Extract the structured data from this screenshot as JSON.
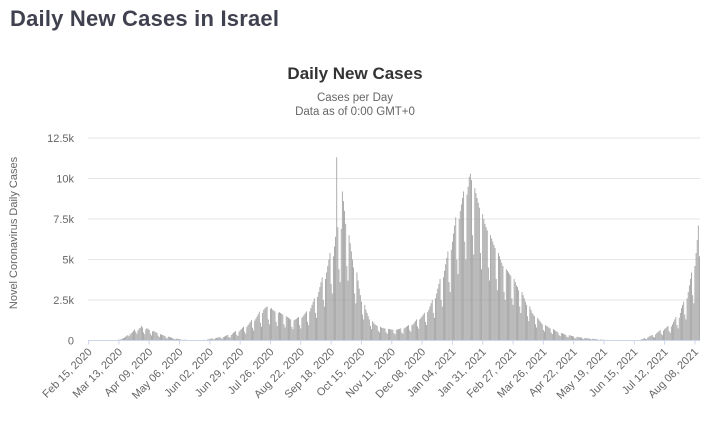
{
  "page": {
    "title": "Daily New Cases in Israel"
  },
  "chart_data": {
    "type": "bar",
    "title": "Daily New Cases",
    "subtitle_line1": "Cases per Day",
    "subtitle_line2": "Data as of 0:00 GMT+0",
    "ylabel": "Novel Coronavirus Daily Cases",
    "series_name": "Daily Cases",
    "ylim": [
      0,
      12500
    ],
    "yticks": [
      0,
      2500,
      5000,
      7500,
      10000,
      12500
    ],
    "ytick_labels": [
      "0",
      "2.5k",
      "5k",
      "7.5k",
      "10k",
      "12.5k"
    ],
    "x_start_date": "Feb 15, 2020",
    "x_end_date": "Aug 12, 2021",
    "x_unit": "day",
    "x_tick_interval_days": 27,
    "x_tick_labels": [
      "Feb 15, 2020",
      "Mar 13, 2020",
      "Apr 09, 2020",
      "May 06, 2020",
      "Jun 02, 2020",
      "Jun 29, 2020",
      "Jul 26, 2020",
      "Aug 22, 2020",
      "Sep 18, 2020",
      "Oct 15, 2020",
      "Nov 11, 2020",
      "Dec 08, 2020",
      "Jan 04, 2021",
      "Jan 31, 2021",
      "Feb 27, 2021",
      "Mar 26, 2021",
      "Apr 22, 2021",
      "May 19, 2021",
      "Jun 15, 2021",
      "Jul 12, 2021",
      "Aug 08, 2021"
    ],
    "legend": "none",
    "grid": "horizontal",
    "bar_color": "#9b9b9b",
    "grid_color": "#e6e6e6",
    "axis_line_color": "#ccd6eb",
    "label_color": "#666666",
    "values": [
      0,
      0,
      0,
      0,
      0,
      0,
      1,
      0,
      0,
      1,
      0,
      1,
      2,
      2,
      3,
      3,
      2,
      4,
      5,
      6,
      8,
      10,
      15,
      21,
      30,
      26,
      35,
      50,
      65,
      80,
      120,
      150,
      180,
      240,
      290,
      330,
      260,
      380,
      450,
      510,
      600,
      680,
      550,
      420,
      620,
      740,
      780,
      900,
      810,
      500,
      380,
      690,
      760,
      720,
      650,
      430,
      310,
      560,
      590,
      540,
      510,
      460,
      290,
      210,
      390,
      360,
      340,
      310,
      280,
      180,
      130,
      240,
      220,
      200,
      180,
      160,
      100,
      70,
      120,
      110,
      90,
      80,
      70,
      40,
      30,
      50,
      45,
      40,
      35,
      30,
      20,
      15,
      25,
      20,
      18,
      16,
      15,
      10,
      8,
      14,
      16,
      20,
      30,
      40,
      25,
      20,
      60,
      80,
      100,
      120,
      140,
      90,
      70,
      130,
      160,
      180,
      200,
      220,
      140,
      110,
      210,
      240,
      280,
      320,
      350,
      220,
      170,
      340,
      420,
      480,
      530,
      580,
      360,
      280,
      550,
      640,
      710,
      780,
      850,
      540,
      420,
      830,
      950,
      1050,
      1150,
      1260,
      790,
      620,
      1230,
      1350,
      1480,
      1620,
      1780,
      1100,
      850,
      1700,
      1900,
      1980,
      2050,
      2100,
      1300,
      1000,
      1950,
      2000,
      1900,
      1850,
      1800,
      1150,
      900,
      1700,
      1750,
      1700,
      1650,
      1600,
      1000,
      800,
      1500,
      1450,
      1400,
      1350,
      1300,
      850,
      700,
      1250,
      1300,
      1350,
      1400,
      1450,
      950,
      750,
      1400,
      1500,
      1600,
      1700,
      1800,
      1150,
      950,
      1800,
      2000,
      2200,
      2400,
      2600,
      1700,
      1400,
      2700,
      3000,
      3300,
      3600,
      3900,
      2500,
      2100,
      3800,
      4200,
      4600,
      5000,
      5400,
      3500,
      2900,
      5200,
      5800,
      6400,
      11316,
      7000,
      4400,
      3600,
      6900,
      9200,
      8600,
      8000,
      7200,
      4600,
      3700,
      6500,
      6000,
      5500,
      5000,
      4500,
      2900,
      2300,
      4200,
      3700,
      3200,
      2800,
      2400,
      1600,
      1300,
      2200,
      1900,
      1700,
      1500,
      1300,
      900,
      700,
      1200,
      1100,
      1000,
      950,
      900,
      600,
      500,
      850,
      800,
      780,
      760,
      740,
      500,
      420,
      720,
      700,
      690,
      680,
      670,
      450,
      380,
      660,
      680,
      700,
      720,
      750,
      500,
      420,
      750,
      800,
      850,
      900,
      950,
      640,
      540,
      950,
      1000,
      1100,
      1200,
      1300,
      870,
      730,
      1300,
      1400,
      1500,
      1600,
      1700,
      1150,
      950,
      1750,
      1900,
      2100,
      2300,
      2500,
      1700,
      1400,
      2600,
      2900,
      3200,
      3500,
      3800,
      2500,
      2100,
      3900,
      4300,
      4700,
      5100,
      5500,
      3600,
      3000,
      5600,
      6100,
      6600,
      7100,
      7600,
      5000,
      4100,
      7500,
      8000,
      8400,
      8800,
      9200,
      6100,
      5000,
      9000,
      9500,
      10100,
      10300,
      9900,
      6500,
      5300,
      9400,
      9100,
      8800,
      8500,
      8200,
      5400,
      4400,
      7800,
      7500,
      7200,
      7000,
      6800,
      4500,
      3700,
      6500,
      6300,
      6100,
      5900,
      5700,
      3800,
      3100,
      5400,
      5200,
      5000,
      4800,
      4600,
      3000,
      2500,
      4400,
      4300,
      4200,
      4100,
      4000,
      2600,
      2200,
      3800,
      3600,
      3400,
      3300,
      3100,
      2100,
      1700,
      3000,
      2800,
      2600,
      2400,
      2200,
      1500,
      1200,
      2100,
      1900,
      1700,
      1600,
      1500,
      1000,
      800,
      1400,
      1300,
      1200,
      1100,
      1000,
      650,
      550,
      950,
      900,
      850,
      800,
      750,
      480,
      400,
      700,
      650,
      600,
      550,
      500,
      330,
      270,
      470,
      440,
      410,
      380,
      350,
      230,
      190,
      330,
      310,
      290,
      270,
      250,
      160,
      130,
      230,
      210,
      200,
      190,
      180,
      120,
      90,
      160,
      150,
      140,
      130,
      120,
      80,
      60,
      110,
      100,
      90,
      80,
      70,
      45,
      35,
      60,
      55,
      50,
      45,
      40,
      25,
      20,
      35,
      30,
      28,
      26,
      24,
      15,
      12,
      20,
      18,
      16,
      15,
      14,
      9,
      7,
      13,
      12,
      12,
      11,
      10,
      6,
      5,
      10,
      12,
      14,
      18,
      25,
      16,
      14,
      40,
      60,
      90,
      120,
      150,
      100,
      80,
      180,
      230,
      290,
      310,
      340,
      220,
      180,
      370,
      450,
      520,
      580,
      640,
      420,
      330,
      610,
      700,
      760,
      830,
      900,
      580,
      470,
      860,
      1000,
      1150,
      1300,
      1450,
      950,
      750,
      1400,
      1700,
      2000,
      2200,
      2400,
      1600,
      1300,
      2600,
      3000,
      3400,
      3800,
      4200,
      2800,
      2300,
      4600,
      5400,
      6200,
      7100,
      5200
    ]
  }
}
